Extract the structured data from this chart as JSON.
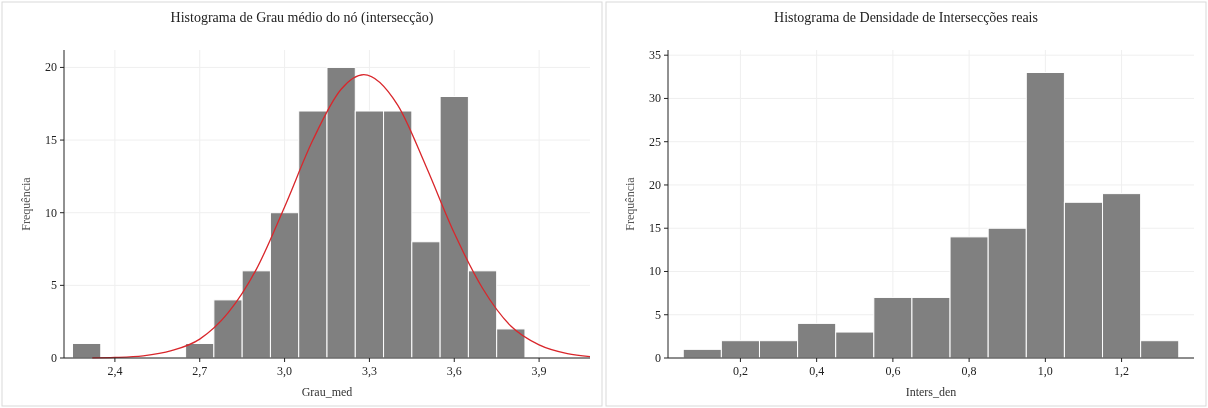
{
  "chart_data": [
    {
      "type": "histogram",
      "title": "Histograma de Grau médio do nó (intersecção)",
      "xlabel": "Grau_med",
      "ylabel": "Frequência",
      "bins": [
        2.25,
        2.35,
        2.45,
        2.55,
        2.65,
        2.75,
        2.85,
        2.95,
        3.05,
        3.15,
        3.25,
        3.35,
        3.45,
        3.55,
        3.65,
        3.75,
        3.85
      ],
      "values": [
        1,
        0,
        0,
        0,
        1,
        4,
        6,
        10,
        17,
        20,
        17,
        17,
        8,
        18,
        6,
        2
      ],
      "color": "#808080",
      "series": [
        {
          "type": "line",
          "color": "#d9262b",
          "x": [
            2.32,
            2.4,
            2.5,
            2.6,
            2.7,
            2.8,
            2.9,
            3.0,
            3.1,
            3.2,
            3.28,
            3.4,
            3.5,
            3.6,
            3.7,
            3.8,
            3.9,
            4.0,
            4.08
          ],
          "values": [
            0.01,
            0.04,
            0.15,
            0.5,
            1.3,
            3.1,
            6.1,
            10.4,
            15.0,
            18.5,
            19.5,
            17.4,
            13.2,
            8.6,
            4.8,
            2.2,
            0.9,
            0.3,
            0.1
          ]
        }
      ],
      "xlim": [
        2.22,
        4.08
      ],
      "xticks": [
        {
          "value": 2.4,
          "label": "2,4"
        },
        {
          "value": 2.7,
          "label": "2,7"
        },
        {
          "value": 3.0,
          "label": "3,0"
        },
        {
          "value": 3.3,
          "label": "3,3"
        },
        {
          "value": 3.6,
          "label": "3,6"
        },
        {
          "value": 3.9,
          "label": "3,9"
        }
      ],
      "ylim": [
        0,
        21.2
      ],
      "yticks": [
        0,
        5,
        10,
        15,
        20
      ],
      "grid": true
    },
    {
      "type": "histogram",
      "title": "Histograma de Densidade de Intersecções reais",
      "xlabel": "Inters_den",
      "ylabel": "Frequência",
      "bins": [
        0.05,
        0.15,
        0.25,
        0.35,
        0.45,
        0.55,
        0.65,
        0.75,
        0.85,
        0.95,
        1.05,
        1.15,
        1.25,
        1.35
      ],
      "values": [
        1,
        2,
        2,
        4,
        3,
        7,
        7,
        14,
        15,
        33,
        18,
        19,
        2
      ],
      "color": "#808080",
      "xlim": [
        0.01,
        1.39
      ],
      "xticks": [
        {
          "value": 0.2,
          "label": "0,2"
        },
        {
          "value": 0.4,
          "label": "0,4"
        },
        {
          "value": 0.6,
          "label": "0,6"
        },
        {
          "value": 0.8,
          "label": "0,8"
        },
        {
          "value": 1.0,
          "label": "1,0"
        },
        {
          "value": 1.2,
          "label": "1,2"
        }
      ],
      "ylim": [
        0,
        35.6
      ],
      "yticks": [
        0,
        5,
        10,
        15,
        20,
        25,
        30,
        35
      ],
      "grid": true
    }
  ]
}
